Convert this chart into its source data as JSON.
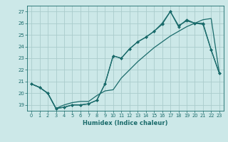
{
  "xlabel": "Humidex (Indice chaleur)",
  "background_color": "#cce8e8",
  "grid_color": "#aacccc",
  "line_color": "#1a6b6b",
  "xlim": [
    -0.5,
    23.5
  ],
  "ylim": [
    18.5,
    27.5
  ],
  "xticks": [
    0,
    1,
    2,
    3,
    4,
    5,
    6,
    7,
    8,
    9,
    10,
    11,
    12,
    13,
    14,
    15,
    16,
    17,
    18,
    19,
    20,
    21,
    22,
    23
  ],
  "yticks": [
    19,
    20,
    21,
    22,
    23,
    24,
    25,
    26,
    27
  ],
  "line1_x": [
    0,
    1,
    2,
    3,
    4,
    5,
    6,
    7,
    8,
    9,
    10,
    11,
    12,
    13,
    14,
    15,
    16,
    17,
    18,
    19,
    20,
    21,
    22,
    23
  ],
  "line1_y": [
    20.8,
    20.5,
    20.0,
    18.7,
    18.8,
    19.0,
    19.0,
    19.1,
    19.4,
    20.8,
    23.2,
    23.0,
    23.8,
    24.4,
    24.8,
    25.3,
    26.0,
    27.0,
    25.7,
    26.3,
    26.0,
    25.9,
    23.7,
    21.7
  ],
  "line2_x": [
    0,
    1,
    2,
    3,
    4,
    5,
    6,
    7,
    8,
    9,
    10,
    11,
    12,
    13,
    14,
    15,
    16,
    17,
    18,
    19,
    20,
    21,
    22,
    23
  ],
  "line2_y": [
    20.8,
    20.5,
    20.0,
    18.7,
    18.8,
    19.0,
    19.0,
    19.1,
    19.4,
    20.8,
    23.2,
    23.0,
    23.8,
    24.4,
    24.8,
    25.3,
    25.9,
    27.0,
    25.8,
    26.2,
    26.0,
    26.0,
    23.7,
    21.7
  ],
  "line3_x": [
    0,
    1,
    2,
    3,
    4,
    5,
    6,
    7,
    8,
    9,
    10,
    11,
    12,
    13,
    14,
    15,
    16,
    17,
    18,
    19,
    20,
    21,
    22,
    23
  ],
  "line3_y": [
    20.8,
    20.5,
    20.0,
    18.7,
    19.0,
    19.2,
    19.3,
    19.3,
    19.8,
    20.2,
    20.3,
    21.3,
    22.0,
    22.7,
    23.3,
    23.9,
    24.4,
    24.9,
    25.3,
    25.7,
    26.0,
    26.3,
    26.4,
    21.7
  ]
}
